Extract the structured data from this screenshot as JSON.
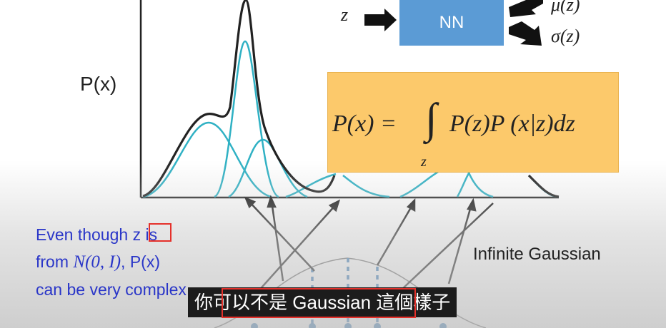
{
  "slide": {
    "p_label": "P(x)",
    "nn": {
      "input_label": "z",
      "box_label": "NN",
      "output_mu": "μ(z)",
      "output_sigma": "σ(z)"
    },
    "formula": {
      "lhs": "P(x) =",
      "integral": "∫",
      "subscript": "z",
      "rhs": "P(z)P (x|z)dz"
    },
    "explanation": {
      "line1_prefix": "Even though ",
      "line1_var": "z",
      "line1_suffix": " is",
      "line2_prefix": "from ",
      "line2_math": "N(0, I)",
      "line2_suffix": ", P(x)",
      "line3": "can be very complex"
    },
    "infinite_gaussian_label": "Infinite Gaussian"
  },
  "subtitle": {
    "text": "你可以不是 Gaussian 這個樣子"
  },
  "colors": {
    "mixture_curve": "#222222",
    "component_curve": "#2fb1c4",
    "nn_box": "#5b9bd5",
    "formula_box": "#fcc96b",
    "explanation_text": "#2a36c8",
    "highlight": "#e5302a",
    "dotted_lines": "#2e75b6",
    "subtitle_bg": "#1c1c1c"
  }
}
